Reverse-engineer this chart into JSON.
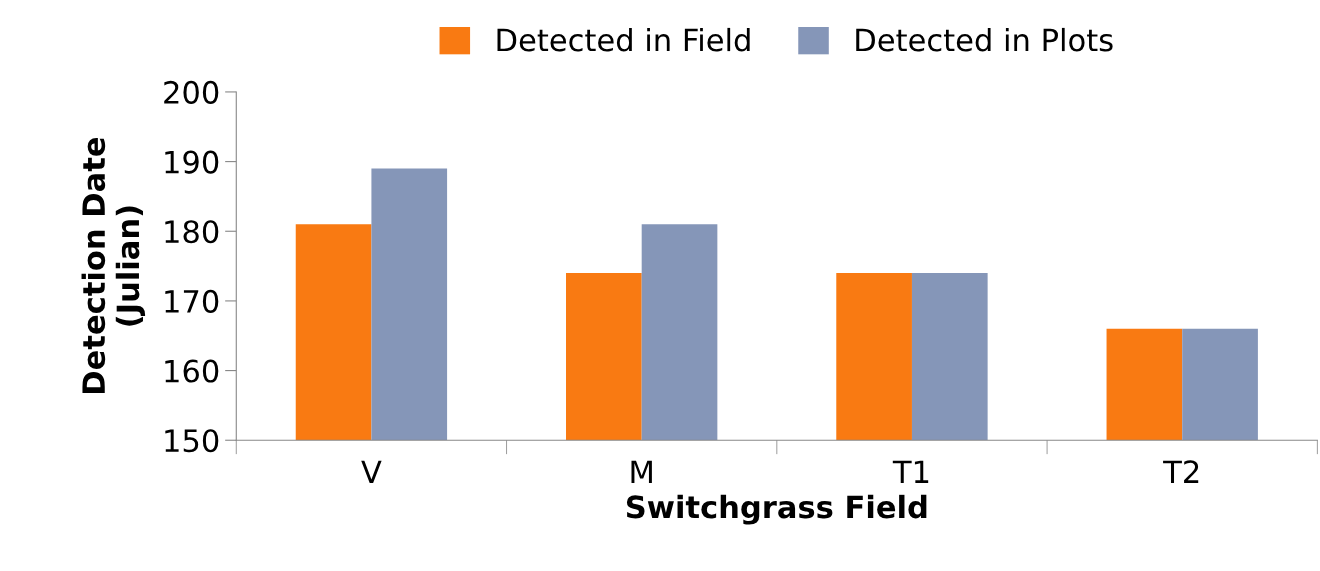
{
  "chart_data": {
    "type": "bar",
    "xlabel": "Switchgrass Field",
    "ylabel": "Detection Date\n(Julian)",
    "categories": [
      "V",
      "M",
      "T1",
      "T2"
    ],
    "series": [
      {
        "name": "Detected in Field",
        "color": "#f97a12",
        "values": [
          181,
          174,
          174,
          166
        ]
      },
      {
        "name": "Detected in Plots",
        "color": "#8596b8",
        "values": [
          189,
          181,
          174,
          166
        ]
      }
    ],
    "ylim": [
      150,
      200
    ],
    "yticks": [
      150,
      160,
      170,
      180,
      190,
      200
    ],
    "grid": false,
    "legend": "top"
  }
}
